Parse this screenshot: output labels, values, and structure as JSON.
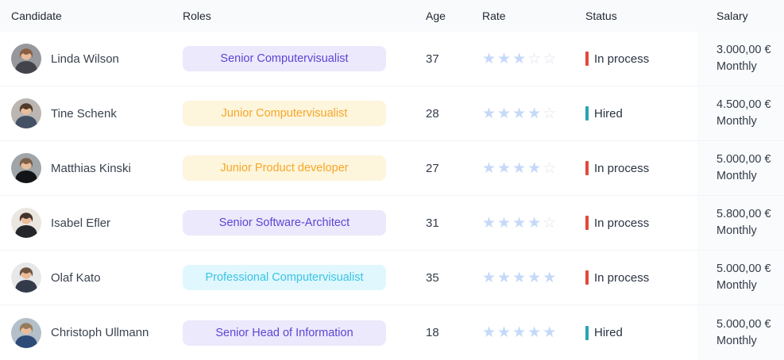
{
  "theme": {
    "header_bg": "#f9fafb",
    "row_border": "#f3f4f6",
    "salary_column_bg": "#fafbfc",
    "star_filled": "#c5d9f8",
    "star_empty": "#dfe3ea"
  },
  "table": {
    "columns": [
      "Candidate",
      "Roles",
      "Age",
      "Rate",
      "Status",
      "Salary"
    ],
    "rating_max": 5,
    "status_colors": {
      "In process": "#e2483d",
      "Hired": "#28a5b2"
    },
    "badge_styles": {
      "purple": {
        "bg": "#ece9fc",
        "text": "#5b46d4"
      },
      "yellow": {
        "bg": "#fdf5dc",
        "text": "#f6a72a"
      },
      "cyan": {
        "bg": "#e0f7fd",
        "text": "#3ac4e5"
      }
    },
    "rows": [
      {
        "name": "Linda Wilson",
        "role": "Senior Computervisualist",
        "role_style": "purple",
        "age": "37",
        "rating": 3,
        "status": "In process",
        "salary": "3.000,00 €",
        "period": "Monthly",
        "avatar": {
          "bg": "#96989d",
          "hair": "#8a5f45",
          "suit": "#43434b"
        }
      },
      {
        "name": "Tine Schenk",
        "role": "Junior Computervisualist",
        "role_style": "yellow",
        "age": "28",
        "rating": 4,
        "status": "Hired",
        "salary": "4.500,00 €",
        "period": "Monthly",
        "avatar": {
          "bg": "#bcb6b2",
          "hair": "#503a2b",
          "suit": "#445064"
        }
      },
      {
        "name": "Matthias Kinski",
        "role": "Junior Product developer",
        "role_style": "yellow",
        "age": "27",
        "rating": 4,
        "status": "In process",
        "salary": "5.000,00 €",
        "period": "Monthly",
        "avatar": {
          "bg": "#9fa5a8",
          "hair": "#7b5f49",
          "suit": "#131417"
        }
      },
      {
        "name": "Isabel Efler",
        "role": "Senior Software-Architect",
        "role_style": "purple",
        "age": "31",
        "rating": 4,
        "status": "In process",
        "salary": "5.800,00 €",
        "period": "Monthly",
        "avatar": {
          "bg": "#ece6e0",
          "hair": "#42342c",
          "suit": "#24262c"
        }
      },
      {
        "name": "Olaf Kato",
        "role": "Professional Computervisualist",
        "role_style": "cyan",
        "age": "35",
        "rating": 5,
        "status": "In process",
        "salary": "5.000,00 €",
        "period": "Monthly",
        "avatar": {
          "bg": "#e6e8ea",
          "hair": "#6d5440",
          "suit": "#333b4a"
        }
      },
      {
        "name": "Christoph Ullmann",
        "role": "Senior Head of Information",
        "role_style": "purple",
        "age": "18",
        "rating": 5,
        "status": "Hired",
        "salary": "5.000,00 €",
        "period": "Monthly",
        "avatar": {
          "bg": "#b3bfc9",
          "hair": "#977c5c",
          "suit": "#2e4a77"
        }
      }
    ]
  }
}
